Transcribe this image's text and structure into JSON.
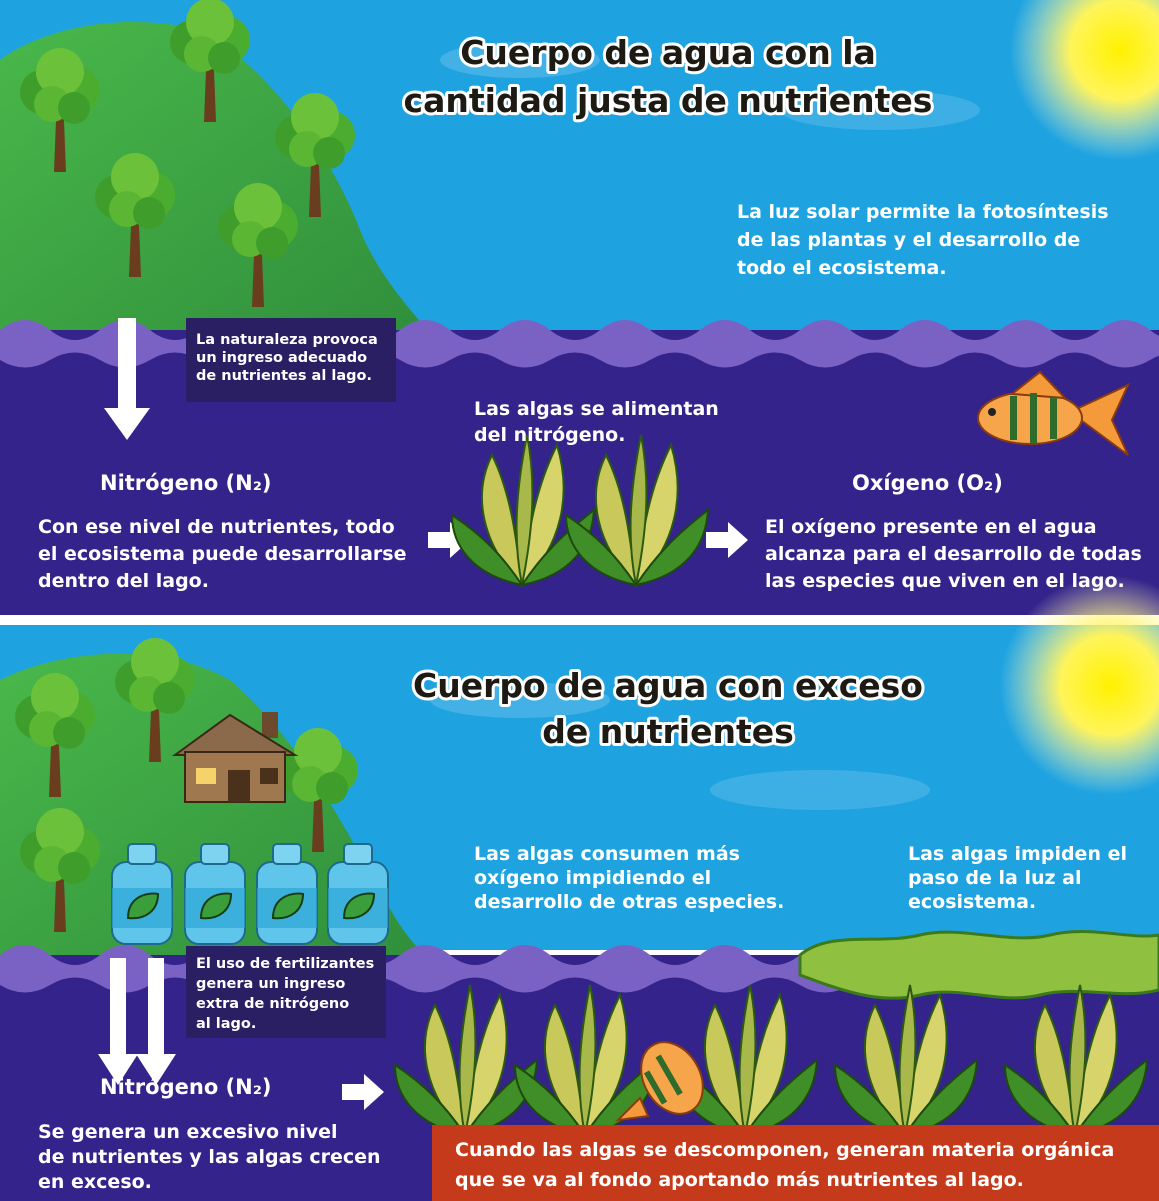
{
  "top": {
    "title": [
      "Cuerpo de agua con la",
      "cantidad justa de nutrientes"
    ],
    "sun_note": [
      "La luz solar permite la fotosíntesis",
      "de las plantas y el desarrollo de",
      "todo el ecosistema."
    ],
    "nature_note": [
      "La naturaleza provoca",
      "un ingreso adecuado",
      "de nutrientes al lago."
    ],
    "algae_note": [
      "Las algas se alimentan",
      "del nitrógeno."
    ],
    "nitrogen_label": "Nitrógeno (N₂)",
    "nitrogen_note": [
      "Con ese nivel de nutrientes, todo",
      "el ecosistema puede desarrollarse",
      "dentro del lago."
    ],
    "oxygen_label": "Oxígeno (O₂)",
    "oxygen_note": [
      "El oxígeno presente en el agua",
      "alcanza para el desarrollo de todas",
      "las especies que viven en el lago."
    ]
  },
  "bottom": {
    "title": [
      "Cuerpo de agua con exceso",
      "de nutrientes"
    ],
    "algae_oxygen_note": [
      "Las algas consumen más",
      "oxígeno impidiendo el",
      "desarrollo de otras especies."
    ],
    "algae_light_note": [
      "Las algas impiden el",
      "paso de la luz al",
      "ecosistema."
    ],
    "fertilizer_note": [
      "El uso de fertilizantes",
      "genera un ingreso",
      "extra de nitrógeno",
      "al lago."
    ],
    "nitrogen_label": "Nitrógeno (N₂)",
    "nitrogen_note": [
      "Se genera un excesivo nivel",
      "de nutrientes y las algas crecen",
      "en exceso."
    ],
    "decomposition_note": [
      "Cuando las algas se descomponen, generan materia orgánica",
      "que se va al fondo aportando más nutrientes al lago."
    ]
  }
}
